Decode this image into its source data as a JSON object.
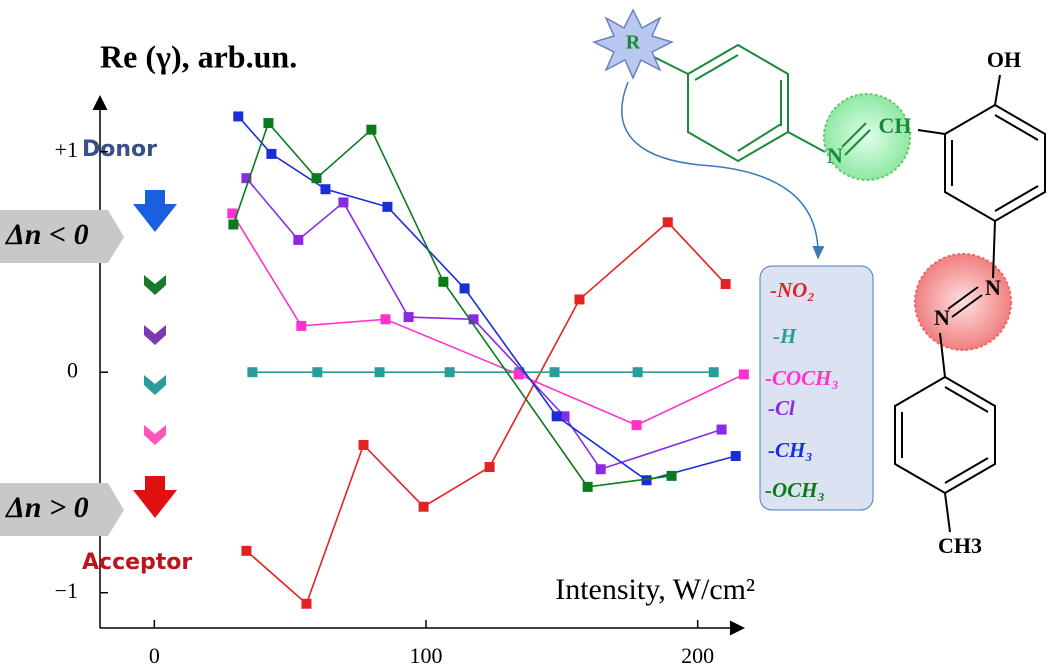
{
  "chart_data": {
    "type": "line",
    "y_label": "Re (γ), arb.un.",
    "x_label": "Intensity, W/cm²",
    "annotations": {
      "donor": "Donor",
      "acceptor": "Acceptor",
      "dn_neg": "Δn < 0",
      "dn_pos": "Δn > 0"
    },
    "xlim": [
      -20,
      220
    ],
    "ylim": [
      -1.16,
      1.23
    ],
    "xticks": [
      0,
      100,
      200
    ],
    "yticks": [
      {
        "value": -1,
        "label": "−1"
      },
      0,
      {
        "value": 1,
        "label": "+1"
      }
    ],
    "series": [
      {
        "name": "-NO₂",
        "color": "#e52222",
        "x": [
          33.9,
          56.0,
          77.0,
          99.1,
          123.4,
          156.5,
          189.0,
          210.3
        ],
        "values": [
          -0.81,
          -1.05,
          -0.33,
          -0.61,
          -0.43,
          0.33,
          0.68,
          0.4
        ]
      },
      {
        "name": "-H",
        "color": "#2a9d9a",
        "x": [
          36.1,
          60.0,
          82.9,
          108.7,
          134.4,
          147.3,
          177.9,
          205.9
        ],
        "values": [
          0,
          0,
          0,
          0,
          0,
          0,
          0,
          0
        ]
      },
      {
        "name": "-COCH₃",
        "color": "#ff33cc",
        "x": [
          28.7,
          54.1,
          85.1,
          134.1,
          177.5,
          217.0
        ],
        "values": [
          0.72,
          0.21,
          0.24,
          -0.01,
          -0.24,
          -0.01
        ]
      },
      {
        "name": "-Cl",
        "color": "#8a2be2",
        "x": [
          33.9,
          53.0,
          69.6,
          93.6,
          117.5,
          151.0,
          164.3,
          208.8
        ],
        "values": [
          0.88,
          0.6,
          0.77,
          0.25,
          0.24,
          -0.2,
          -0.44,
          -0.26
        ]
      },
      {
        "name": "-CH₃",
        "color": "#1a2ed8",
        "x": [
          30.9,
          43.1,
          63.0,
          85.8,
          114.2,
          148.1,
          181.2,
          214.0
        ],
        "values": [
          1.16,
          0.99,
          0.83,
          0.75,
          0.38,
          -0.2,
          -0.49,
          -0.38
        ]
      },
      {
        "name": "-OCH₃",
        "color": "#0a7a1a",
        "x": [
          29.1,
          42.0,
          59.7,
          79.9,
          106.4,
          159.5,
          190.4
        ],
        "values": [
          0.67,
          1.13,
          0.88,
          1.1,
          0.41,
          -0.52,
          -0.47
        ]
      }
    ]
  },
  "molecule": {
    "r": "R",
    "n1": "N",
    "ch": "CH",
    "oh": "OH",
    "n2": "N",
    "n3": "N",
    "ch3": "CH3"
  }
}
